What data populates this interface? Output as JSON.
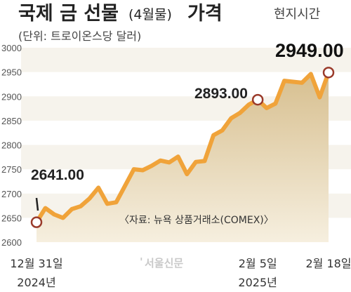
{
  "header": {
    "title": "국제 금 선물",
    "title_paren": "(4월물)",
    "title_tail": "가격",
    "subtitle": "(단위: 트로이온스당 달러)",
    "time_note": "현지시간"
  },
  "source_note": "〈자료: 뉴욕 상품거래소(COMEX)〉",
  "logo_text": "서울신문",
  "colors": {
    "line": "#f0a33a",
    "area_top": "#d7bf8f",
    "area_bottom": "#f6efdf",
    "band": "#f6f3ec",
    "marker_fill": "#ffffff",
    "marker_stroke": "#9a3a2a"
  },
  "chart_data": {
    "type": "area",
    "title": "국제 금 선물(4월물) 가격",
    "ylabel": "(단위: 트로이온스당 달러)",
    "ylim": [
      2600,
      3000
    ],
    "yticks": [
      2600,
      2650,
      2700,
      2750,
      2800,
      2850,
      2900,
      2950,
      3000
    ],
    "grid": "horizontal bands",
    "x_tick_labels": [
      {
        "index": 0,
        "line1": "12월 31일",
        "line2": "2024년"
      },
      {
        "index": 25,
        "line1": "2월 5일",
        "line2": "2025년"
      },
      {
        "index": 33,
        "line1": "2월 18일",
        "line2": ""
      }
    ],
    "values": [
      2641,
      2670,
      2657,
      2650,
      2668,
      2674,
      2690,
      2712,
      2679,
      2682,
      2716,
      2750,
      2748,
      2757,
      2768,
      2764,
      2776,
      2740,
      2765,
      2767,
      2820,
      2830,
      2855,
      2866,
      2883,
      2893,
      2876,
      2885,
      2932,
      2930,
      2928,
      2946,
      2898,
      2949
    ],
    "annotations": [
      {
        "index": 0,
        "label": "2641.00"
      },
      {
        "index": 25,
        "label": "2893.00"
      },
      {
        "index": 33,
        "label": "2949.00"
      }
    ]
  }
}
